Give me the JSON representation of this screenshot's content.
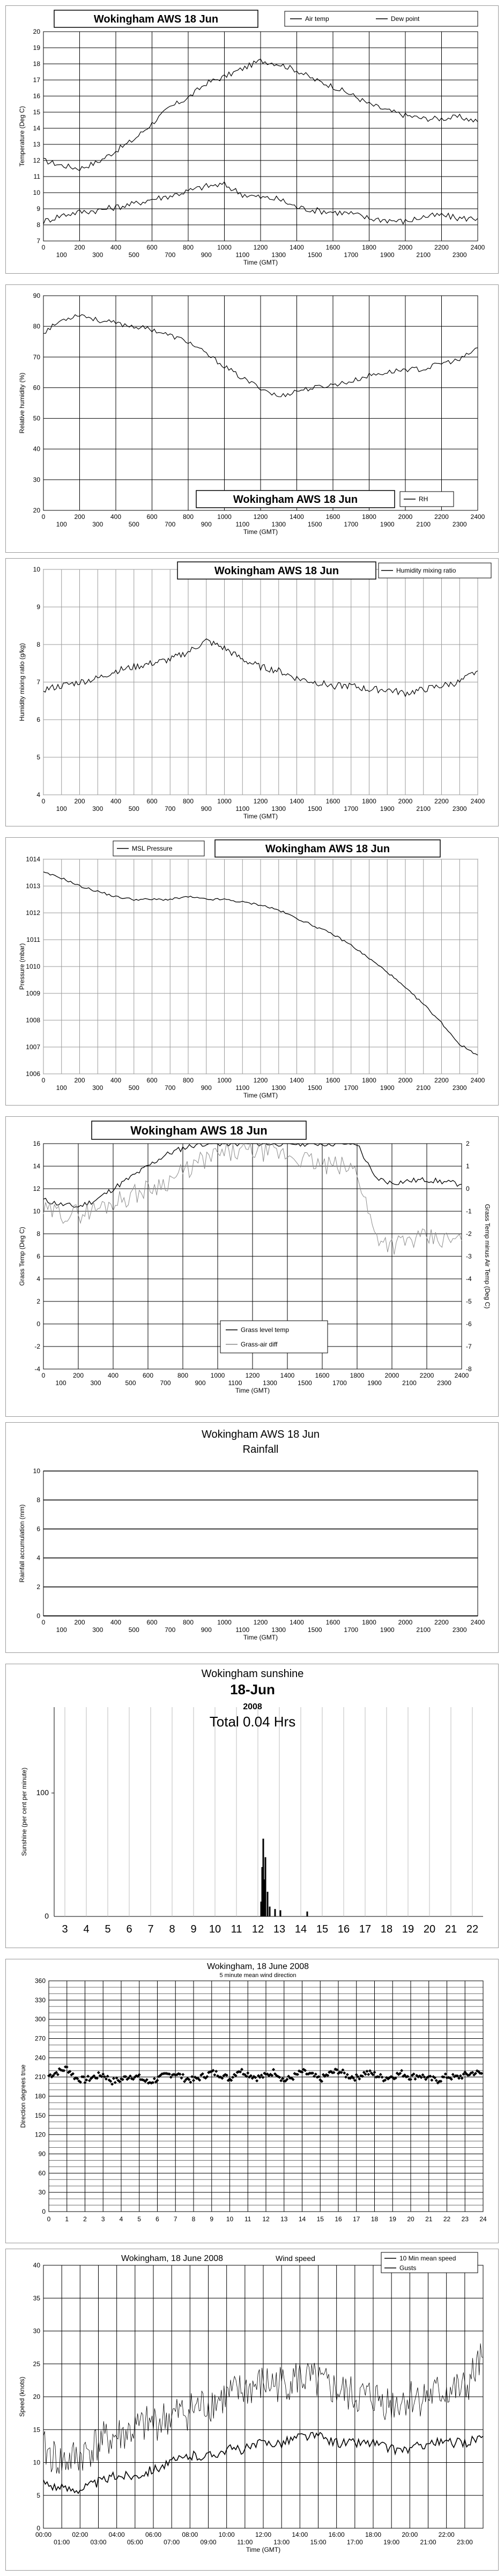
{
  "chart_data": [
    {
      "id": "temp",
      "type": "line",
      "title": "Wokingham AWS 18 Jun",
      "xlabel": "Time (GMT)",
      "ylabel": "Temperature (Deg C)",
      "xlim": [
        0,
        2400
      ],
      "ylim": [
        7,
        20
      ],
      "x_ticks_top": [
        "0",
        "200",
        "400",
        "600",
        "800",
        "1000",
        "1200",
        "1400",
        "1600",
        "1800",
        "2000",
        "2200",
        "2400"
      ],
      "x_ticks_bottom": [
        "100",
        "300",
        "500",
        "700",
        "900",
        "1100",
        "1300",
        "1500",
        "1700",
        "1900",
        "2100",
        "2300"
      ],
      "y_ticks": [
        "7",
        "8",
        "9",
        "10",
        "11",
        "12",
        "13",
        "14",
        "15",
        "16",
        "17",
        "18",
        "19",
        "20"
      ],
      "legend": "top-right",
      "series": [
        {
          "name": "Air temp",
          "x": [
            0,
            100,
            200,
            300,
            400,
            500,
            600,
            700,
            800,
            900,
            1000,
            1100,
            1200,
            1300,
            1400,
            1500,
            1600,
            1700,
            1800,
            1900,
            2000,
            2100,
            2200,
            2300,
            2400
          ],
          "values": [
            12.0,
            11.7,
            11.5,
            11.9,
            12.6,
            13.3,
            14.3,
            15.3,
            15.9,
            16.8,
            17.2,
            17.7,
            18.2,
            18.0,
            17.6,
            17.0,
            16.6,
            16.1,
            15.5,
            15.1,
            14.8,
            14.6,
            14.6,
            14.7,
            14.4
          ]
        },
        {
          "name": "Dew point",
          "x": [
            0,
            100,
            200,
            300,
            400,
            500,
            600,
            700,
            800,
            900,
            1000,
            1100,
            1200,
            1300,
            1400,
            1500,
            1600,
            1700,
            1800,
            1900,
            2000,
            2100,
            2200,
            2300,
            2400
          ],
          "values": [
            8.2,
            8.6,
            8.8,
            8.9,
            9.1,
            9.3,
            9.6,
            9.8,
            10.1,
            10.4,
            10.5,
            9.9,
            9.7,
            9.6,
            9.1,
            8.9,
            8.8,
            8.7,
            8.4,
            8.3,
            8.2,
            8.5,
            8.6,
            8.4,
            8.4
          ]
        }
      ]
    },
    {
      "id": "rh",
      "type": "line",
      "title": "Wokingham AWS 18 Jun",
      "xlabel": "Time (GMT)",
      "ylabel": "Relative humidity (%)",
      "xlim": [
        0,
        2400
      ],
      "ylim": [
        20,
        90
      ],
      "x_ticks_top": [
        "0",
        "200",
        "400",
        "600",
        "800",
        "1000",
        "1200",
        "1400",
        "1600",
        "1800",
        "2000",
        "2200",
        "2400"
      ],
      "x_ticks_bottom": [
        "100",
        "300",
        "500",
        "700",
        "900",
        "1100",
        "1300",
        "1500",
        "1700",
        "1900",
        "2100",
        "2300"
      ],
      "y_ticks": [
        "20",
        "30",
        "40",
        "50",
        "60",
        "70",
        "80",
        "90"
      ],
      "legend": "bottom-center",
      "series": [
        {
          "name": "RH",
          "x": [
            0,
            100,
            200,
            300,
            400,
            500,
            600,
            700,
            800,
            900,
            1000,
            1100,
            1200,
            1300,
            1400,
            1500,
            1600,
            1700,
            1800,
            1900,
            2000,
            2100,
            2200,
            2300,
            2400
          ],
          "values": [
            78,
            82,
            84,
            82,
            81,
            80,
            79,
            77,
            75,
            71,
            67,
            63,
            60,
            57,
            59,
            60,
            61,
            62,
            64,
            65,
            66,
            66,
            68,
            69,
            73
          ]
        }
      ]
    },
    {
      "id": "mix",
      "type": "line",
      "title": "Wokingham AWS 18 Jun",
      "xlabel": "Time (GMT)",
      "ylabel": "Humidity mixing ratio (g/kg)",
      "xlim": [
        0,
        2400
      ],
      "ylim": [
        4,
        10
      ],
      "x_ticks_top": [
        "0",
        "200",
        "400",
        "600",
        "800",
        "1000",
        "1200",
        "1400",
        "1600",
        "1800",
        "2000",
        "2200",
        "2400"
      ],
      "x_ticks_bottom": [
        "100",
        "300",
        "500",
        "700",
        "900",
        "1100",
        "1300",
        "1500",
        "1700",
        "1900",
        "2100",
        "2300"
      ],
      "y_ticks": [
        "4",
        "5",
        "6",
        "7",
        "8",
        "9",
        "10"
      ],
      "legend": "top-right",
      "series": [
        {
          "name": "Humidity mixing ratio",
          "x": [
            0,
            100,
            200,
            300,
            400,
            500,
            600,
            700,
            800,
            900,
            1000,
            1100,
            1200,
            1300,
            1400,
            1500,
            1600,
            1700,
            1800,
            1900,
            2000,
            2100,
            2200,
            2300,
            2400
          ],
          "values": [
            6.8,
            6.9,
            7.0,
            7.1,
            7.3,
            7.4,
            7.5,
            7.6,
            7.8,
            8.1,
            7.9,
            7.6,
            7.4,
            7.3,
            7.1,
            7.0,
            6.9,
            6.9,
            6.8,
            6.8,
            6.7,
            6.8,
            6.9,
            7.0,
            7.3
          ]
        }
      ]
    },
    {
      "id": "pres",
      "type": "line",
      "title": "Wokingham AWS 18 Jun",
      "xlabel": "Time (GMT)",
      "ylabel": "Pressure (mbar)",
      "xlim": [
        0,
        2400
      ],
      "ylim": [
        1006,
        1014
      ],
      "x_ticks_top": [
        "0",
        "200",
        "400",
        "600",
        "800",
        "1000",
        "1200",
        "1400",
        "1600",
        "1800",
        "2000",
        "2200",
        "2400"
      ],
      "x_ticks_bottom": [
        "100",
        "300",
        "500",
        "700",
        "900",
        "1100",
        "1300",
        "1500",
        "1700",
        "1900",
        "2100",
        "2300"
      ],
      "y_ticks": [
        "1006",
        "1007",
        "1008",
        "1009",
        "1010",
        "1011",
        "1012",
        "1013",
        "1014"
      ],
      "legend": "top-left",
      "series": [
        {
          "name": "MSL Pressure",
          "x": [
            0,
            100,
            200,
            300,
            400,
            500,
            600,
            700,
            800,
            900,
            1000,
            1100,
            1200,
            1300,
            1400,
            1500,
            1600,
            1700,
            1800,
            1900,
            2000,
            2100,
            2200,
            2300,
            2400
          ],
          "values": [
            1013.5,
            1013.3,
            1013.0,
            1012.8,
            1012.6,
            1012.5,
            1012.5,
            1012.5,
            1012.6,
            1012.5,
            1012.5,
            1012.4,
            1012.3,
            1012.1,
            1011.8,
            1011.5,
            1011.2,
            1010.8,
            1010.3,
            1009.8,
            1009.2,
            1008.6,
            1007.9,
            1007.1,
            1006.7
          ]
        }
      ]
    },
    {
      "id": "grass",
      "type": "line",
      "title": "Wokingham AWS 18 Jun",
      "xlabel": "Time (GMT)",
      "ylabel": "Grass Temp (Deg C)",
      "y2label": "Grass Temp minus Air Temp (Deg C)",
      "xlim": [
        0,
        2400
      ],
      "ylim": [
        -4,
        16
      ],
      "y2lim": [
        -8,
        2
      ],
      "x_ticks_top": [
        "0",
        "200",
        "400",
        "600",
        "800",
        "1000",
        "1200",
        "1400",
        "1600",
        "1800",
        "2000",
        "2200",
        "2400"
      ],
      "x_ticks_bottom": [
        "100",
        "300",
        "500",
        "700",
        "900",
        "1100",
        "1300",
        "1500",
        "1700",
        "1900",
        "2100",
        "2300"
      ],
      "y_ticks": [
        "-4",
        "-2",
        "0",
        "2",
        "4",
        "6",
        "8",
        "10",
        "12",
        "14",
        "16"
      ],
      "y2_ticks": [
        "-8",
        "-7",
        "-6",
        "-5",
        "-4",
        "-3",
        "-2",
        "-1",
        "0",
        "1",
        "2"
      ],
      "legend": "bottom-center",
      "series": [
        {
          "name": "Grass level temp",
          "axis": "left",
          "x": [
            0,
            100,
            200,
            300,
            400,
            500,
            600,
            700,
            800,
            900,
            1000,
            1100,
            1200,
            1300,
            1400,
            1500,
            1600,
            1700,
            1800,
            1900,
            2000,
            2100,
            2200,
            2300,
            2400
          ],
          "values": [
            11.0,
            10.6,
            10.4,
            11.0,
            12.0,
            13.0,
            14.0,
            15.0,
            15.6,
            16.0,
            16.0,
            16.0,
            16.0,
            16.0,
            16.0,
            16.0,
            16.0,
            16.0,
            16.0,
            13.0,
            12.5,
            12.7,
            12.8,
            12.6,
            12.4
          ]
        },
        {
          "name": "Grass-air diff",
          "axis": "right",
          "x": [
            0,
            100,
            200,
            300,
            400,
            500,
            600,
            700,
            800,
            900,
            1000,
            1100,
            1200,
            1300,
            1400,
            1500,
            1600,
            1700,
            1800,
            1900,
            2000,
            2100,
            2200,
            2300,
            2400
          ],
          "values": [
            -1.0,
            -1.1,
            -1.1,
            -0.9,
            -0.6,
            -0.3,
            0.0,
            0.3,
            0.7,
            1.2,
            1.5,
            1.6,
            1.7,
            1.6,
            1.5,
            1.3,
            1.0,
            1.0,
            0.8,
            -2.0,
            -2.5,
            -2.3,
            -2.2,
            -2.3,
            -2.3
          ]
        }
      ]
    },
    {
      "id": "rain",
      "type": "line",
      "title": "Wokingham AWS 18 Jun",
      "subtitle": "Rainfall",
      "xlabel": "Time (GMT)",
      "ylabel": "Rainfall accumulation (mm)",
      "xlim": [
        0,
        2400
      ],
      "ylim": [
        0,
        10
      ],
      "x_ticks_top": [
        "0",
        "200",
        "400",
        "600",
        "800",
        "1000",
        "1200",
        "1400",
        "1600",
        "1800",
        "2000",
        "2200",
        "2400"
      ],
      "x_ticks_bottom": [
        "100",
        "300",
        "500",
        "700",
        "900",
        "1100",
        "1300",
        "1500",
        "1700",
        "1900",
        "2100",
        "2300"
      ],
      "y_ticks": [
        "0",
        "2",
        "4",
        "6",
        "8",
        "10"
      ],
      "series": [
        {
          "x": [
            0,
            2400
          ],
          "values": [
            0,
            0
          ]
        }
      ]
    },
    {
      "id": "sun",
      "type": "bar",
      "title": "Wokingham sunshine",
      "subtitle": "18-Jun",
      "year": "2008",
      "total": "Total 0.04 Hrs",
      "ylabel": "Sunshine (per cent per minute)",
      "xlim": [
        2.5,
        22.5
      ],
      "ylim": [
        0,
        100
      ],
      "x_ticks": [
        "3",
        "4",
        "5",
        "6",
        "7",
        "8",
        "9",
        "10",
        "11",
        "12",
        "13",
        "14",
        "15",
        "16",
        "17",
        "18",
        "19",
        "20",
        "21",
        "22"
      ],
      "y_ticks": [
        "0",
        "100"
      ],
      "x": [
        12.15,
        12.2,
        12.25,
        12.3,
        12.35,
        12.45,
        12.55,
        12.8,
        13.05,
        14.3
      ],
      "values": [
        12,
        40,
        63,
        30,
        48,
        20,
        8,
        6,
        5,
        4
      ]
    },
    {
      "id": "dir",
      "type": "scatter",
      "title": "Wokingham, 18 June 2008",
      "subtitle": "5 minute mean wind direction",
      "ylabel": "Direction degrees true",
      "xlim": [
        0,
        24
      ],
      "ylim": [
        0,
        360
      ],
      "x_ticks": [
        "0",
        "1",
        "2",
        "3",
        "4",
        "5",
        "6",
        "7",
        "8",
        "9",
        "10",
        "11",
        "12",
        "13",
        "14",
        "15",
        "16",
        "17",
        "18",
        "19",
        "20",
        "21",
        "22",
        "23",
        "24"
      ],
      "y_ticks": [
        "0",
        "30",
        "60",
        "90",
        "120",
        "150",
        "180",
        "210",
        "240",
        "270",
        "300",
        "330",
        "360"
      ],
      "x": [
        0.0,
        0.5,
        1.0,
        1.5,
        2.0,
        2.5,
        3.0,
        3.5,
        4.0,
        4.5,
        5.0,
        5.5,
        6.0,
        6.5,
        7.0,
        7.5,
        8.0,
        8.5,
        9.0,
        9.5,
        10.0,
        10.5,
        11.0,
        11.5,
        12.0,
        12.5,
        13.0,
        13.5,
        14.0,
        14.5,
        15.0,
        15.5,
        16.0,
        16.5,
        17.0,
        17.5,
        18.0,
        18.5,
        19.0,
        19.5,
        20.0,
        20.5,
        21.0,
        21.5,
        22.0,
        22.5,
        23.0,
        23.5,
        24.0
      ],
      "values": [
        212,
        218,
        224,
        208,
        205,
        210,
        214,
        203,
        206,
        212,
        209,
        201,
        207,
        213,
        216,
        208,
        205,
        211,
        217,
        214,
        207,
        221,
        215,
        209,
        212,
        219,
        204,
        210,
        218,
        213,
        206,
        215,
        220,
        212,
        209,
        217,
        214,
        208,
        211,
        216,
        210,
        213,
        207,
        205,
        211,
        209,
        213,
        217,
        215
      ]
    },
    {
      "id": "speed",
      "type": "line",
      "title": "Wokingham,  18 June 2008",
      "subtitle": "Wind speed",
      "xlabel": "Time (GMT)",
      "ylabel": "Speed (knots)",
      "xlim": [
        0,
        24
      ],
      "ylim": [
        0,
        40
      ],
      "x_ticks_top": [
        "00:00",
        "02:00",
        "04:00",
        "06:00",
        "08:00",
        "10:00",
        "12:00",
        "14:00",
        "16:00",
        "18:00",
        "20:00",
        "22:00"
      ],
      "x_ticks_bottom": [
        "01:00",
        "03:00",
        "05:00",
        "07:00",
        "09:00",
        "11:00",
        "13:00",
        "15:00",
        "17:00",
        "19:00",
        "21:00",
        "23:00"
      ],
      "y_ticks": [
        "0",
        "5",
        "10",
        "15",
        "20",
        "25",
        "30",
        "35",
        "40"
      ],
      "legend": "top-right",
      "series": [
        {
          "name": "10 Min mean speed",
          "x": [
            0,
            1,
            2,
            3,
            4,
            5,
            6,
            7,
            8,
            9,
            10,
            11,
            12,
            13,
            14,
            15,
            16,
            17,
            18,
            19,
            20,
            21,
            22,
            23,
            24
          ],
          "values": [
            7,
            6,
            6,
            7,
            8,
            8,
            9,
            10,
            11,
            11,
            12,
            12,
            13,
            13,
            14,
            14,
            13,
            13,
            13,
            12,
            12,
            13,
            13,
            13,
            14
          ]
        },
        {
          "name": "Gusts",
          "x": [
            0,
            1,
            2,
            3,
            4,
            5,
            6,
            7,
            8,
            9,
            10,
            11,
            12,
            13,
            14,
            15,
            16,
            17,
            18,
            19,
            20,
            21,
            22,
            23,
            24
          ],
          "values": [
            12,
            10,
            11,
            13,
            14,
            15,
            16,
            17,
            18,
            19,
            20,
            21,
            22,
            22,
            23,
            22,
            21,
            20,
            20,
            19,
            20,
            20,
            21,
            21,
            26
          ]
        }
      ]
    }
  ]
}
